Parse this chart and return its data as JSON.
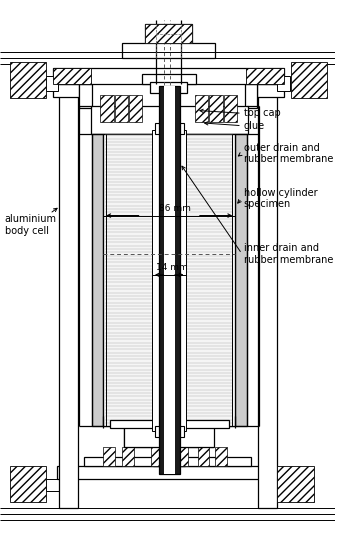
{
  "bg_color": "#ffffff",
  "line_color": "#000000",
  "fig_width": 3.5,
  "fig_height": 5.43,
  "dpi": 100,
  "labels": {
    "top_cap": "top cap",
    "glue": "glue",
    "outer_drain": "outer drain and\nrubber membrane",
    "hollow_cylinder": "hollow cylinder\nspecimen",
    "inner_drain": "inner drain and\nrubber membrane",
    "aluminium": "aluminium\nbody cell",
    "dim_86": "86 mm",
    "dim_14": "14 mm"
  }
}
